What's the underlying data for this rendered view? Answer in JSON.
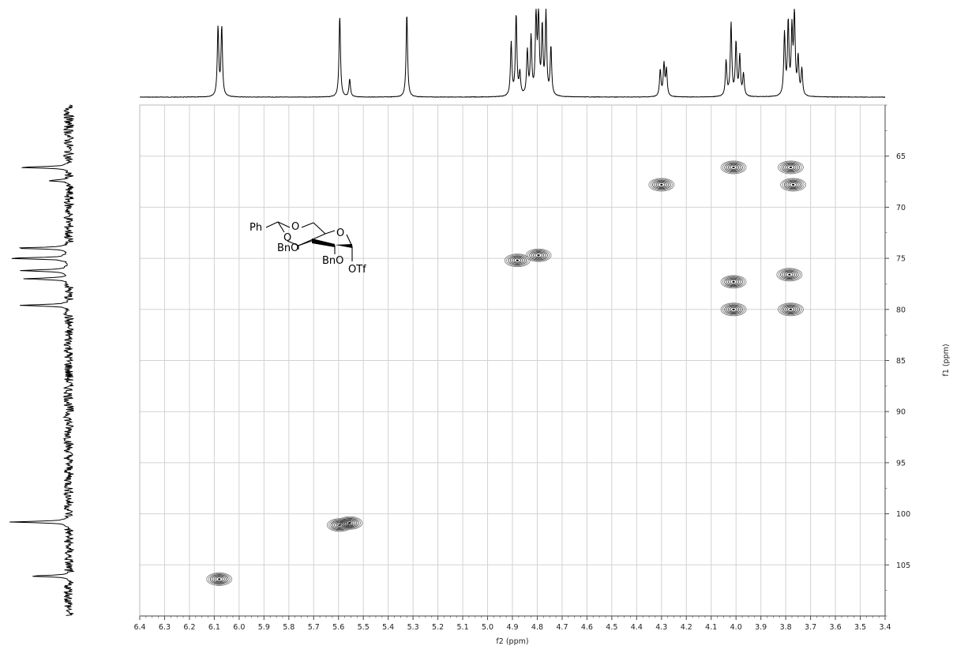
{
  "chart_data": {
    "type": "heatmap",
    "title": "",
    "xlabel": "f2 (ppm)",
    "ylabel": "f1 (ppm)",
    "xlim": [
      6.4,
      3.4
    ],
    "ylim": [
      60,
      110
    ],
    "x_ticks": [
      "6.4",
      "6.3",
      "6.2",
      "6.1",
      "6.0",
      "5.9",
      "5.8",
      "5.7",
      "5.6",
      "5.5",
      "5.4",
      "5.3",
      "5.2",
      "5.1",
      "5.0",
      "4.9",
      "4.8",
      "4.7",
      "4.6",
      "4.5",
      "4.4",
      "4.3",
      "4.2",
      "4.1",
      "4.0",
      "3.9",
      "3.8",
      "3.7",
      "3.6",
      "3.5",
      "3.4"
    ],
    "y_ticks": [
      "65",
      "70",
      "75",
      "80",
      "85",
      "90",
      "95",
      "100",
      "105"
    ],
    "grid": true,
    "cross_peaks": [
      {
        "h": 6.08,
        "c": 106.4
      },
      {
        "h": 5.595,
        "c": 101.1
      },
      {
        "h": 5.555,
        "c": 100.9
      },
      {
        "h": 4.88,
        "c": 75.2
      },
      {
        "h": 4.795,
        "c": 74.7
      },
      {
        "h": 4.3,
        "c": 67.8
      },
      {
        "h": 4.01,
        "c": 66.1
      },
      {
        "h": 4.01,
        "c": 77.3
      },
      {
        "h": 4.01,
        "c": 80.0
      },
      {
        "h": 3.78,
        "c": 66.1
      },
      {
        "h": 3.77,
        "c": 67.8
      },
      {
        "h": 3.785,
        "c": 76.6
      },
      {
        "h": 3.78,
        "c": 80.0
      }
    ],
    "proton_projection_peaks": [
      {
        "ppm": 6.085,
        "height": 0.78
      },
      {
        "ppm": 6.07,
        "height": 0.78
      },
      {
        "ppm": 5.595,
        "height": 0.92
      },
      {
        "ppm": 5.555,
        "height": 0.2
      },
      {
        "ppm": 5.325,
        "height": 0.95
      },
      {
        "ppm": 4.905,
        "height": 0.6
      },
      {
        "ppm": 4.885,
        "height": 0.92
      },
      {
        "ppm": 4.87,
        "height": 0.25
      },
      {
        "ppm": 4.84,
        "height": 0.5
      },
      {
        "ppm": 4.825,
        "height": 0.65
      },
      {
        "ppm": 4.805,
        "height": 0.9
      },
      {
        "ppm": 4.795,
        "height": 0.9
      },
      {
        "ppm": 4.78,
        "height": 0.75
      },
      {
        "ppm": 4.765,
        "height": 0.92
      },
      {
        "ppm": 4.745,
        "height": 0.55
      },
      {
        "ppm": 4.305,
        "height": 0.3
      },
      {
        "ppm": 4.29,
        "height": 0.36
      },
      {
        "ppm": 4.28,
        "height": 0.3
      },
      {
        "ppm": 4.04,
        "height": 0.4
      },
      {
        "ppm": 4.02,
        "height": 0.82
      },
      {
        "ppm": 4.0,
        "height": 0.6
      },
      {
        "ppm": 3.985,
        "height": 0.45
      },
      {
        "ppm": 3.97,
        "height": 0.25
      },
      {
        "ppm": 3.805,
        "height": 0.7
      },
      {
        "ppm": 3.79,
        "height": 0.82
      },
      {
        "ppm": 3.775,
        "height": 0.72
      },
      {
        "ppm": 3.765,
        "height": 0.92
      },
      {
        "ppm": 3.75,
        "height": 0.42
      },
      {
        "ppm": 3.735,
        "height": 0.3
      }
    ],
    "carbon_projection_peaks": [
      {
        "ppm": 66.1,
        "height": 0.78
      },
      {
        "ppm": 67.4,
        "height": 0.32
      },
      {
        "ppm": 74.0,
        "height": 0.88
      },
      {
        "ppm": 75.0,
        "height": 0.97
      },
      {
        "ppm": 76.2,
        "height": 0.78
      },
      {
        "ppm": 77.0,
        "height": 0.73
      },
      {
        "ppm": 79.6,
        "height": 0.78
      },
      {
        "ppm": 100.8,
        "height": 0.95
      },
      {
        "ppm": 106.1,
        "height": 0.6
      }
    ]
  },
  "molecule": {
    "labels": {
      "ph": "Ph",
      "o_top": "O",
      "o_ring": "O",
      "o_mid": "O",
      "bno_left": "BnO",
      "bno_right": "BnO",
      "otf": "OTf"
    }
  }
}
